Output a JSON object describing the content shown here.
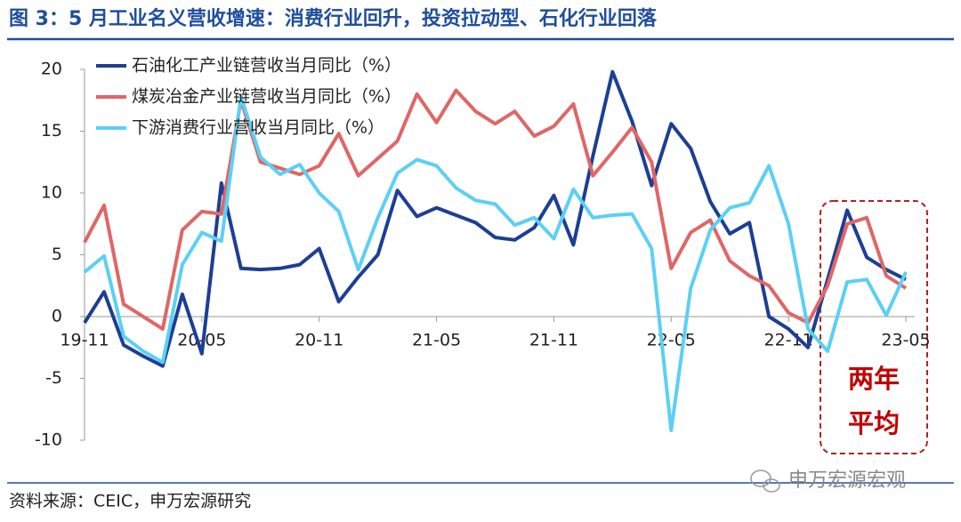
{
  "chart_data": {
    "type": "line",
    "title": "图 3：5 月工业名义营收增速：消费行业回升，投资拉动型、石化行业回落",
    "source": "资料来源：CEIC，申万宏源研究",
    "watermark": "申万宏源宏观",
    "annotation": [
      "两年",
      "平均"
    ],
    "categories": [
      "19-11",
      null,
      null,
      null,
      null,
      null,
      "20-05",
      null,
      null,
      null,
      null,
      null,
      "20-11",
      null,
      null,
      null,
      null,
      null,
      "21-05",
      null,
      null,
      null,
      null,
      null,
      "21-11",
      null,
      null,
      null,
      null,
      null,
      "22-05",
      null,
      null,
      null,
      null,
      null,
      "22-11",
      null,
      null,
      null,
      null,
      null,
      "23-05"
    ],
    "series": [
      {
        "name": "石油化工产业链营收当月同比（%）",
        "color": "#1c3f94",
        "values": [
          -0.5,
          2.0,
          -2.3,
          -3.2,
          -4.0,
          1.8,
          -3.0,
          10.8,
          3.9,
          3.8,
          3.9,
          4.2,
          5.5,
          1.2,
          3.2,
          5.0,
          10.2,
          8.1,
          8.8,
          8.2,
          7.6,
          6.4,
          6.2,
          7.2,
          9.8,
          5.8,
          13.0,
          19.8,
          15.8,
          10.6,
          15.6,
          13.6,
          9.3,
          6.7,
          7.6,
          0.0,
          -1.0,
          -2.5,
          3.0,
          8.6,
          4.8,
          3.8,
          3.0
        ]
      },
      {
        "name": "煤炭冶金产业链营收当月同比（%）",
        "color": "#e06666",
        "values": [
          6.0,
          9.0,
          1.0,
          0.0,
          -1.0,
          7.0,
          8.5,
          8.3,
          17.5,
          12.5,
          12.0,
          11.5,
          12.2,
          14.8,
          11.4,
          12.8,
          14.2,
          18.0,
          15.7,
          18.3,
          16.6,
          15.6,
          16.6,
          14.6,
          15.4,
          17.2,
          11.4,
          13.3,
          15.3,
          12.5,
          3.9,
          6.8,
          7.8,
          4.5,
          3.3,
          2.5,
          0.3,
          -0.5,
          2.5,
          7.5,
          8.0,
          3.3,
          2.3
        ]
      },
      {
        "name": "下游消费行业营收当月同比（%）",
        "color": "#5bd0f5",
        "values": [
          3.6,
          4.9,
          -1.6,
          -2.8,
          -3.7,
          4.2,
          6.8,
          6.1,
          17.8,
          12.9,
          11.5,
          12.3,
          10.0,
          8.5,
          3.8,
          8.0,
          11.6,
          12.7,
          12.2,
          10.4,
          9.4,
          9.1,
          7.4,
          8.0,
          6.3,
          10.3,
          8.0,
          8.2,
          8.3,
          5.5,
          -9.2,
          2.3,
          7.0,
          8.8,
          9.2,
          12.2,
          7.5,
          -1.0,
          -2.8,
          2.8,
          3.0,
          0.1,
          3.6
        ]
      }
    ],
    "ylim": [
      -10,
      20
    ],
    "yticks": [
      -10,
      -5,
      0,
      5,
      10,
      15,
      20
    ],
    "legend": "upper left"
  }
}
